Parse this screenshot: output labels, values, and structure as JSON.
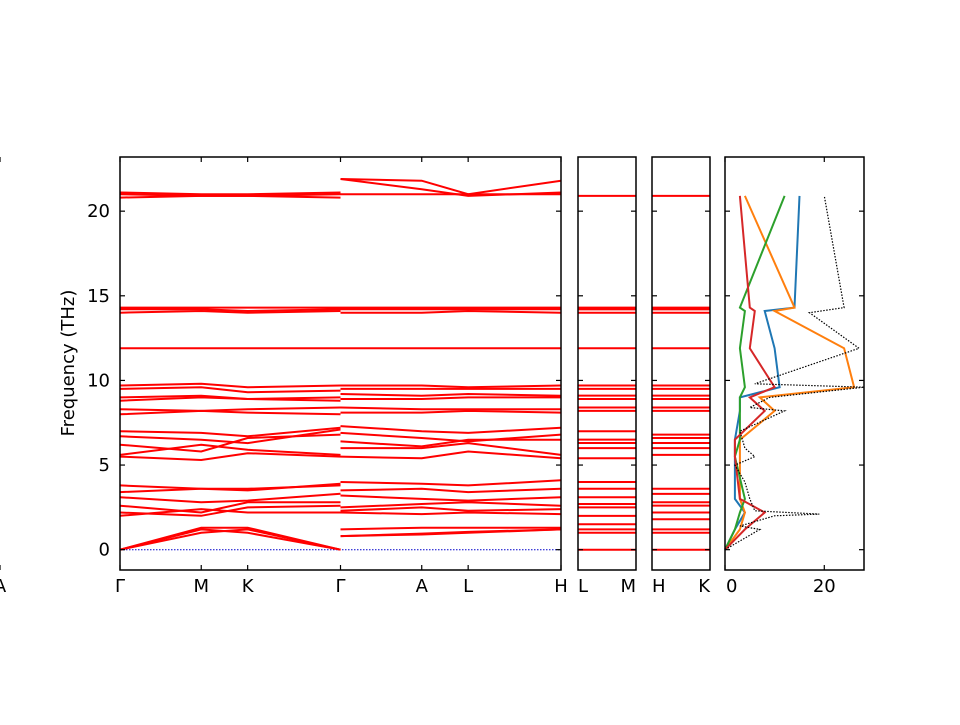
{
  "chart_data": [
    {
      "type": "line",
      "panel": "band-structure-main",
      "ylabel": "Frequency (THz)",
      "ylim": [
        -1.2,
        23.2
      ],
      "yticks": [
        0,
        5,
        10,
        15,
        20
      ],
      "xticks": [
        "Γ",
        "M",
        "K",
        "Γ",
        "A",
        "L",
        "H",
        "A"
      ],
      "segments": [
        {
          "path": "Γ-M-K-Γ",
          "x": [
            0,
            1,
            1.5714,
            2.7143
          ],
          "labels": [
            "Γ",
            "M",
            "K",
            "Γ"
          ]
        },
        {
          "path": "A-L-H-A",
          "x": [
            0,
            1,
            1.5714,
            2.7143
          ],
          "labels": [
            "A",
            "L",
            "H",
            "A"
          ]
        }
      ],
      "series": [
        {
          "group": "acoustic",
          "seg1": [
            [
              0,
              1.0,
              1.2,
              0
            ],
            [
              0,
              1.2,
              1.0,
              0
            ],
            [
              0,
              1.3,
              1.3,
              0
            ]
          ],
          "seg2": [
            [
              0.8,
              0.9,
              1.0,
              1.2
            ],
            [
              1.2,
              1.3,
              1.3,
              1.3
            ],
            [
              0.8,
              0.95,
              1.05,
              1.2
            ]
          ]
        },
        {
          "group": "low-optic",
          "seg1": [
            [
              2.0,
              2.4,
              2.2,
              2.2
            ],
            [
              2.2,
              2.0,
              2.5,
              2.6
            ],
            [
              2.6,
              2.2,
              2.8,
              2.8
            ],
            [
              3.1,
              2.8,
              2.9,
              3.3
            ],
            [
              3.4,
              3.6,
              3.6,
              3.8
            ],
            [
              3.8,
              3.6,
              3.5,
              3.9
            ]
          ],
          "seg2": [
            [
              2.2,
              2.1,
              2.2,
              2.1
            ],
            [
              2.3,
              2.5,
              2.3,
              2.4
            ],
            [
              2.5,
              2.7,
              2.8,
              2.6
            ],
            [
              3.2,
              3.0,
              2.9,
              3.1
            ],
            [
              3.5,
              3.6,
              3.4,
              3.6
            ],
            [
              4.0,
              3.9,
              3.8,
              4.1
            ]
          ]
        },
        {
          "group": "mid-optic",
          "seg1": [
            [
              5.5,
              5.3,
              5.7,
              5.5
            ],
            [
              5.6,
              6.2,
              5.9,
              5.6
            ],
            [
              6.2,
              5.8,
              6.6,
              6.8
            ],
            [
              6.7,
              6.5,
              6.3,
              7.1
            ],
            [
              7.0,
              6.9,
              6.7,
              7.2
            ]
          ],
          "seg2": [
            [
              5.5,
              5.4,
              5.8,
              5.4
            ],
            [
              6.0,
              6.0,
              6.3,
              5.6
            ],
            [
              6.4,
              6.1,
              6.5,
              6.5
            ],
            [
              6.9,
              6.6,
              6.4,
              6.8
            ],
            [
              7.3,
              7.0,
              6.9,
              7.2
            ]
          ]
        },
        {
          "group": "high-optic",
          "seg1": [
            [
              8.0,
              8.2,
              8.1,
              8.0
            ],
            [
              8.3,
              8.2,
              8.3,
              8.4
            ],
            [
              8.8,
              9.0,
              8.9,
              8.8
            ],
            [
              9.0,
              9.1,
              8.9,
              9.0
            ],
            [
              9.5,
              9.6,
              9.3,
              9.4
            ],
            [
              9.7,
              9.8,
              9.6,
              9.7
            ]
          ],
          "seg2": [
            [
              8.1,
              8.1,
              8.2,
              8.1
            ],
            [
              8.4,
              8.3,
              8.3,
              8.3
            ],
            [
              8.9,
              8.9,
              9.0,
              9.0
            ],
            [
              9.2,
              9.1,
              9.2,
              9.1
            ],
            [
              9.5,
              9.5,
              9.5,
              9.5
            ],
            [
              9.7,
              9.7,
              9.6,
              9.7
            ]
          ]
        },
        {
          "group": "flat-12",
          "seg1": [
            [
              11.9,
              11.9,
              11.9,
              11.9
            ]
          ],
          "seg2": [
            [
              11.9,
              11.9,
              11.9,
              11.9
            ]
          ]
        },
        {
          "group": "flat-14",
          "seg1": [
            [
              14.0,
              14.1,
              14.0,
              14.1
            ],
            [
              14.2,
              14.2,
              14.1,
              14.2
            ],
            [
              14.3,
              14.3,
              14.3,
              14.3
            ]
          ],
          "seg2": [
            [
              14.0,
              14.0,
              14.1,
              14.0
            ],
            [
              14.2,
              14.2,
              14.2,
              14.2
            ],
            [
              14.3,
              14.3,
              14.3,
              14.3
            ]
          ]
        },
        {
          "group": "top",
          "seg1": [
            [
              20.8,
              20.9,
              20.9,
              20.8
            ],
            [
              21.0,
              20.9,
              20.9,
              21.0
            ],
            [
              21.1,
              21.0,
              21.0,
              21.1
            ]
          ],
          "seg2": [
            [
              21.0,
              21.0,
              21.0,
              21.0
            ],
            [
              21.9,
              21.3,
              20.9,
              21.1
            ],
            [
              21.9,
              21.8,
              21.0,
              21.8
            ]
          ]
        }
      ]
    },
    {
      "type": "line",
      "panel": "band-structure-L-M",
      "ylim": [
        -1.2,
        23.2
      ],
      "xticks": [
        "L",
        "M"
      ],
      "levels": [
        0,
        1.0,
        1.2,
        1.5,
        2.0,
        2.5,
        2.7,
        3.1,
        3.6,
        4.0,
        5.4,
        6.0,
        6.3,
        6.5,
        7.0,
        8.2,
        8.4,
        8.9,
        9.1,
        9.5,
        9.7,
        11.9,
        14.0,
        14.2,
        14.3,
        20.9
      ]
    },
    {
      "type": "line",
      "panel": "band-structure-H-K",
      "ylim": [
        -1.2,
        23.2
      ],
      "xticks": [
        "H",
        "K"
      ],
      "levels": [
        0,
        1.0,
        1.2,
        1.8,
        2.2,
        2.6,
        2.8,
        3.3,
        3.6,
        5.6,
        6.0,
        6.3,
        6.6,
        6.8,
        8.2,
        8.4,
        8.9,
        9.1,
        9.5,
        9.7,
        11.9,
        14.0,
        14.2,
        14.3,
        20.9
      ]
    },
    {
      "type": "area",
      "panel": "phonon-dos",
      "xlim": [
        0,
        28
      ],
      "xticks": [
        0,
        20
      ],
      "ylim": [
        -1.2,
        23.2
      ],
      "series": [
        {
          "color": "#000000",
          "style": "dotted",
          "freq": [
            0,
            1.2,
            1.4,
            2.0,
            2.1,
            2.3,
            3.0,
            4.0,
            5.0,
            5.5,
            6.0,
            7.0,
            8.2,
            8.4,
            9.0,
            9.6,
            9.8,
            11.9,
            14.0,
            14.3,
            20.9
          ],
          "dos": [
            0,
            7,
            3,
            10,
            19,
            6,
            5,
            4,
            2,
            6,
            4,
            3,
            12,
            5,
            9,
            28,
            6,
            27,
            17,
            24,
            20
          ]
        },
        {
          "color": "#1f77b4",
          "style": "solid",
          "freq": [
            0,
            1.2,
            2.2,
            3.0,
            5.5,
            6.5,
            8.2,
            9.0,
            9.6,
            11.9,
            14.1,
            14.3,
            20.9
          ],
          "dos": [
            0,
            2,
            4,
            2,
            2,
            2,
            3,
            3,
            11,
            10,
            8,
            14,
            15
          ]
        },
        {
          "color": "#ff7f0e",
          "style": "solid",
          "freq": [
            0,
            1.2,
            2.2,
            3.0,
            5.5,
            6.5,
            8.2,
            9.0,
            9.6,
            11.9,
            14.1,
            14.3,
            20.9
          ],
          "dos": [
            0,
            3,
            4,
            3,
            3,
            3,
            10,
            7,
            26,
            24,
            10,
            14,
            4
          ]
        },
        {
          "color": "#2ca02c",
          "style": "solid",
          "freq": [
            0,
            1.2,
            2.2,
            3.0,
            5.5,
            6.5,
            8.2,
            9.0,
            9.6,
            11.9,
            14.1,
            14.3,
            20.9
          ],
          "dos": [
            0,
            2,
            3,
            4,
            2,
            3,
            3,
            3,
            4,
            3,
            4,
            3,
            12
          ]
        },
        {
          "color": "#d62728",
          "style": "solid",
          "freq": [
            0,
            1.2,
            2.2,
            3.0,
            5.5,
            6.5,
            8.2,
            9.0,
            9.6,
            11.9,
            14.1,
            14.3,
            20.9
          ],
          "dos": [
            0,
            4,
            8,
            3,
            2,
            2,
            8,
            5,
            10,
            5,
            6,
            5,
            3
          ]
        }
      ]
    }
  ],
  "colors": {
    "bands": "#ff0000",
    "zero_line": "#0000cc"
  }
}
